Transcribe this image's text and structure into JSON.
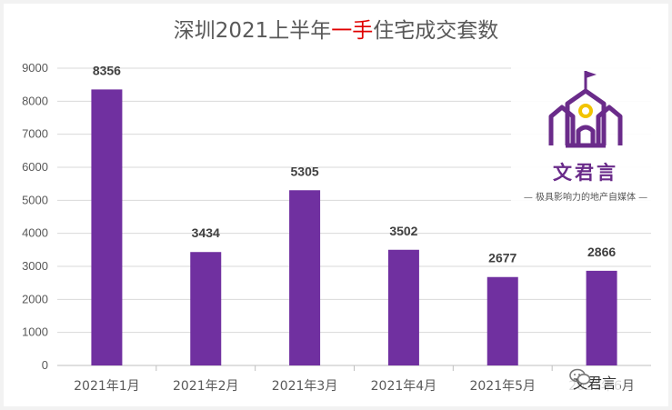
{
  "chart_data": {
    "type": "bar",
    "title_parts": [
      "深圳2021上半年",
      "一手",
      "住宅成交套数"
    ],
    "categories": [
      "2021年1月",
      "2021年2月",
      "2021年3月",
      "2021年4月",
      "2021年5月",
      "2021年6月"
    ],
    "values": [
      8356,
      3434,
      5305,
      3502,
      2677,
      2866
    ],
    "yticks": [
      "0",
      "1000",
      "2000",
      "3000",
      "4000",
      "5000",
      "6000",
      "7000",
      "8000",
      "9000"
    ],
    "ylim": [
      0,
      9000
    ],
    "bar_color": "#7030a0",
    "title_accent_color": "#e00000",
    "grid": true,
    "legend": "none"
  },
  "logo": {
    "name": "文君言",
    "tagline": "— 极具影响力的地产自媒体 —",
    "color": "#6a2b8a",
    "icon": "house-icon"
  },
  "watermark": {
    "text": "文君言",
    "icon": "wechat-icon"
  }
}
